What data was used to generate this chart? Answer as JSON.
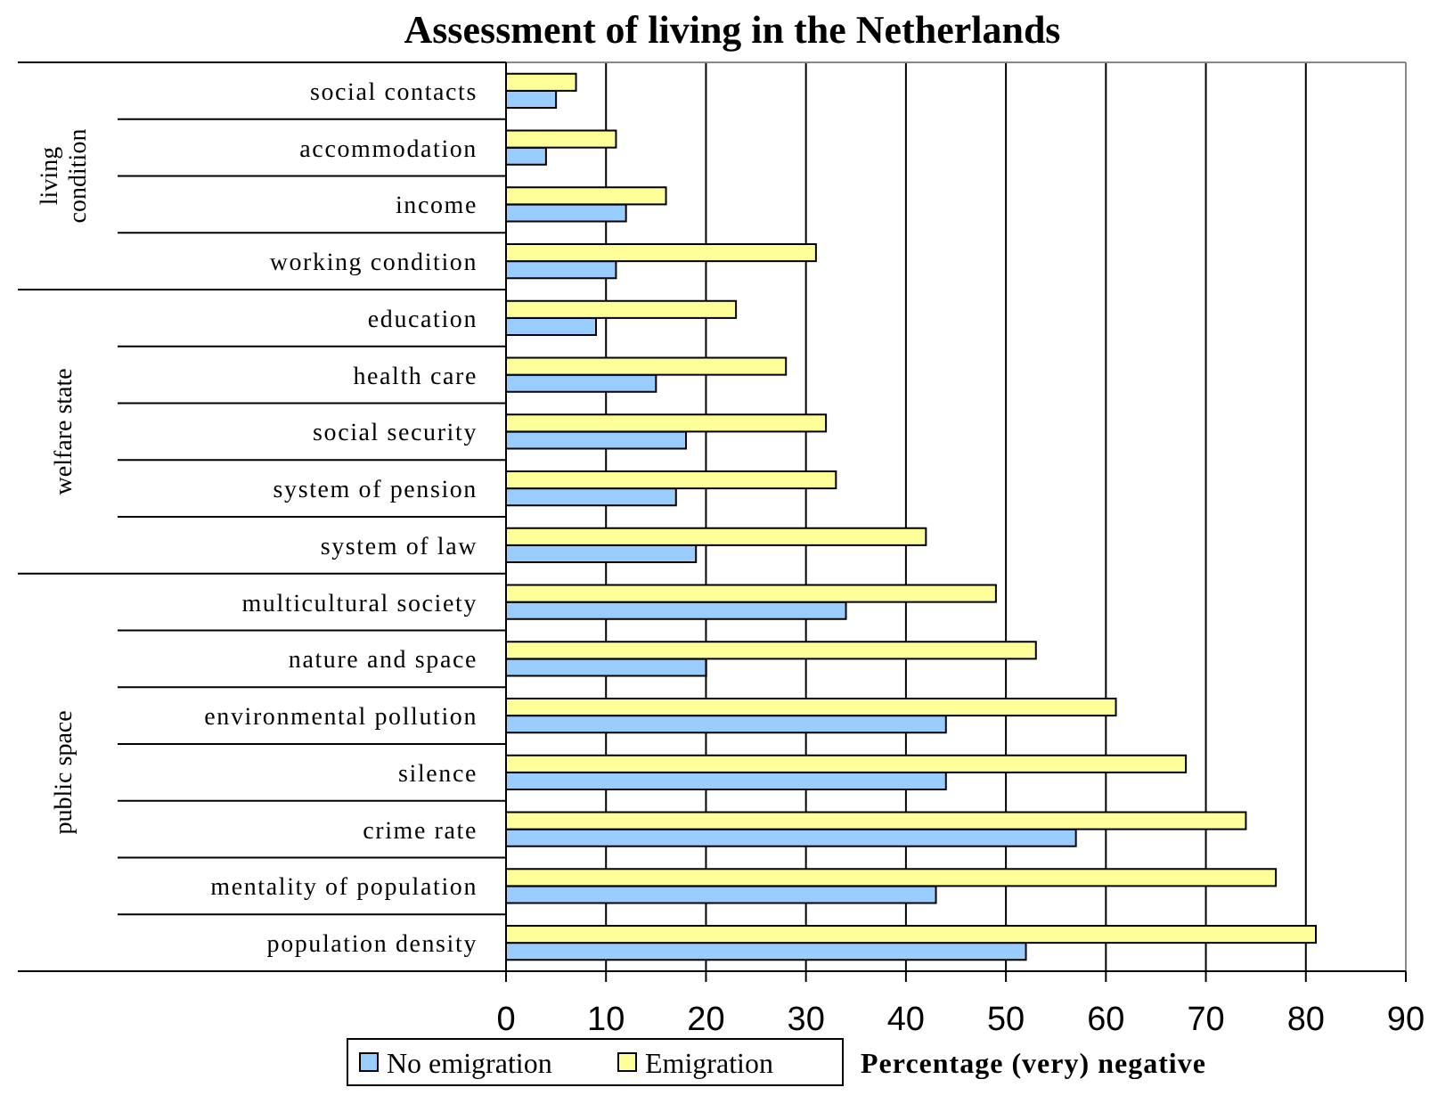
{
  "chart_data": {
    "type": "bar",
    "orientation": "horizontal",
    "title": "Assessment of living in the Netherlands",
    "xlabel": "Percentage (very) negative",
    "categories": [
      "social contacts",
      "accommodation",
      "income",
      "working condition",
      "education",
      "health care",
      "social security",
      "system of pension",
      "system of law",
      "multicultural society",
      "nature and space",
      "environmental pollution",
      "silence",
      "crime rate",
      "mentality of population",
      "population density"
    ],
    "series": [
      {
        "name": "No emigration",
        "color": "#99ccff",
        "values": [
          5,
          4,
          12,
          11,
          9,
          15,
          18,
          17,
          19,
          34,
          20,
          44,
          44,
          57,
          43,
          52
        ]
      },
      {
        "name": "Emigration",
        "color": "#ffff99",
        "values": [
          7,
          11,
          16,
          31,
          23,
          28,
          32,
          33,
          42,
          49,
          53,
          61,
          68,
          74,
          77,
          81
        ]
      }
    ],
    "xlim": [
      0,
      90
    ],
    "xticks": [
      0,
      10,
      20,
      30,
      40,
      50,
      60,
      70,
      80,
      90
    ],
    "grid": "x",
    "legend": "bottom",
    "annotations": [
      "living condition",
      "welfare state",
      "public space"
    ]
  }
}
